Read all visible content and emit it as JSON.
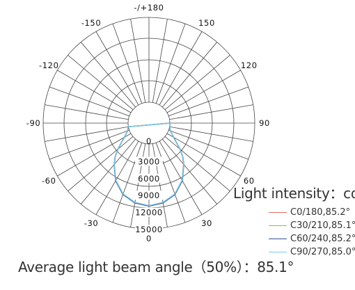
{
  "chart_data": {
    "type": "polar",
    "angle_labels": [
      {
        "text": "-/+180",
        "deg": 180
      },
      {
        "text": "150",
        "deg": 150
      },
      {
        "text": "-150",
        "deg": -150
      },
      {
        "text": "120",
        "deg": 120
      },
      {
        "text": "-120",
        "deg": -120
      },
      {
        "text": "90",
        "deg": 90
      },
      {
        "text": "-90",
        "deg": -90
      },
      {
        "text": "60",
        "deg": 60
      },
      {
        "text": "-60",
        "deg": -60
      },
      {
        "text": "30",
        "deg": 30
      },
      {
        "text": "-30",
        "deg": -30
      },
      {
        "text": "0",
        "deg": 0
      }
    ],
    "radial_ticks": [
      "0",
      "3000",
      "6000",
      "9000",
      "12000",
      "15000"
    ],
    "r_max": 15000,
    "spoke_step_deg": 10,
    "grid": true,
    "series": [
      {
        "name": "C0/180,85.2°",
        "color": "#e86a6a",
        "points": [
          [
            0,
            10900
          ],
          [
            10,
            10550
          ],
          [
            20,
            9650
          ],
          [
            30,
            8000
          ],
          [
            40,
            5800
          ],
          [
            45,
            4700
          ],
          [
            50,
            3400
          ],
          [
            60,
            1300
          ],
          [
            70,
            300
          ],
          [
            80,
            80
          ],
          [
            90,
            0
          ]
        ]
      },
      {
        "name": "C30/210,85.1°",
        "color": "#7ccb3a",
        "points": [
          [
            0,
            10950
          ],
          [
            10,
            10600
          ],
          [
            20,
            9700
          ],
          [
            30,
            8050
          ],
          [
            40,
            5850
          ],
          [
            45,
            4750
          ],
          [
            50,
            3450
          ],
          [
            60,
            1350
          ],
          [
            70,
            320
          ],
          [
            80,
            80
          ],
          [
            90,
            0
          ]
        ]
      },
      {
        "name": "C60/240,85.2°",
        "color": "#2e4f99",
        "points": [
          [
            0,
            11000
          ],
          [
            10,
            10650
          ],
          [
            20,
            9750
          ],
          [
            30,
            8100
          ],
          [
            40,
            5900
          ],
          [
            45,
            4800
          ],
          [
            50,
            3500
          ],
          [
            60,
            1350
          ],
          [
            70,
            320
          ],
          [
            80,
            80
          ],
          [
            90,
            0
          ]
        ]
      },
      {
        "name": "C90/270,85.0°",
        "color": "#79c9e8",
        "points": [
          [
            0,
            10900
          ],
          [
            10,
            10550
          ],
          [
            20,
            9650
          ],
          [
            30,
            8000
          ],
          [
            40,
            5850
          ],
          [
            45,
            4750
          ],
          [
            50,
            3450
          ],
          [
            60,
            1300
          ],
          [
            70,
            300
          ],
          [
            80,
            80
          ],
          [
            90,
            0
          ]
        ]
      }
    ]
  },
  "labels": {
    "intensity_title": "Light intensity：cd",
    "beam_angle": "Average light beam angle（50%）：85.1°"
  }
}
